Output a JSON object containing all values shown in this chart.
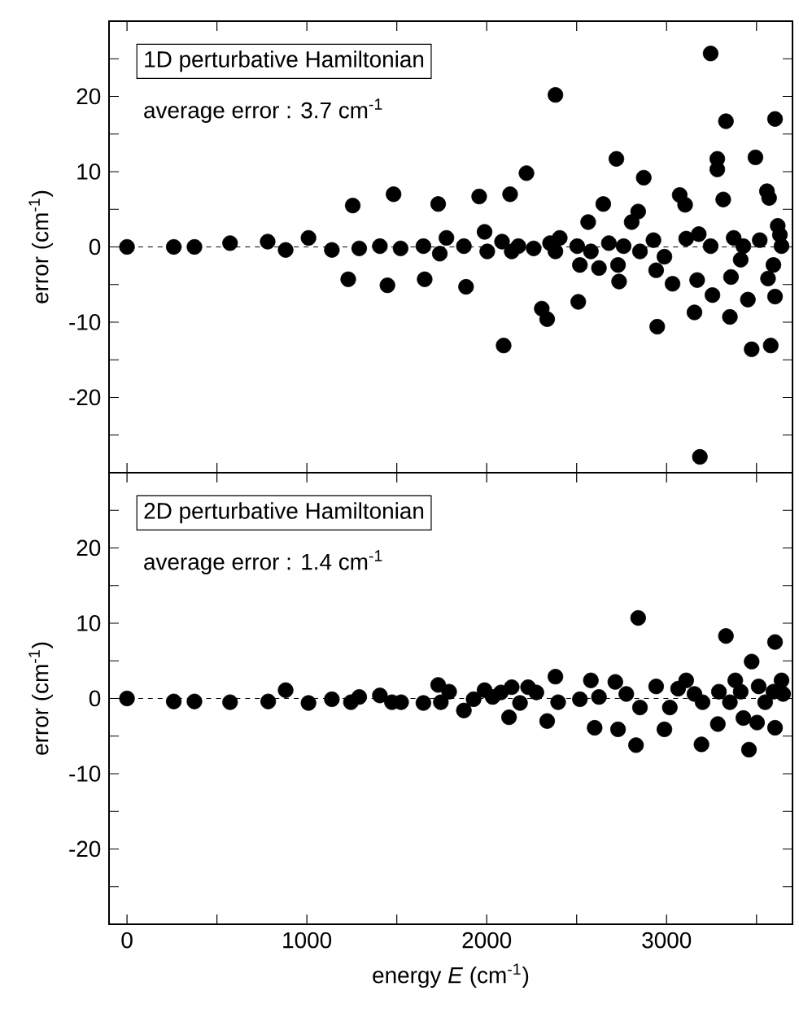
{
  "chart_data": [
    {
      "type": "scatter",
      "title": "1D perturbative Hamiltonian",
      "ylabel": "error  (cm$^{-1}$)",
      "annotations": [
        "average error : 3.7 cm$^{-1}$"
      ],
      "x": [
        0,
        260,
        375,
        573,
        782,
        882,
        1009,
        1139,
        1255,
        1230,
        1291,
        1406,
        1448,
        1482,
        1521,
        1648,
        1655,
        1730,
        1739,
        1776,
        1873,
        1885,
        1958,
        1988,
        2003,
        2085,
        2094,
        2130,
        2139,
        2176,
        2221,
        2261,
        2306,
        2336,
        2352,
        2382,
        2406,
        2382,
        2509,
        2503,
        2518,
        2564,
        2579,
        2624,
        2648,
        2679,
        2721,
        2730,
        2736,
        2761,
        2806,
        2842,
        2852,
        2873,
        2927,
        2942,
        2948,
        2988,
        3033,
        3073,
        3103,
        3109,
        3155,
        3170,
        3179,
        3185,
        3245,
        3245,
        3255,
        3282,
        3282,
        3315,
        3330,
        3352,
        3358,
        3373,
        3412,
        3427,
        3452,
        3473,
        3494,
        3518,
        3558,
        3570,
        3564,
        3579,
        3594,
        3603,
        3603,
        3618,
        3630,
        3639
      ],
      "values": [
        0,
        0,
        0,
        0.5,
        0.7,
        -0.4,
        1.2,
        -0.4,
        5.5,
        -4.3,
        -0.2,
        0.1,
        -5.1,
        7.0,
        -0.2,
        0.1,
        -4.3,
        5.7,
        -0.9,
        1.2,
        0.1,
        -5.3,
        6.7,
        2.0,
        -0.6,
        0.7,
        -13.1,
        7.0,
        -0.6,
        0.1,
        9.8,
        -0.2,
        -8.2,
        -9.6,
        0.5,
        20.2,
        1.2,
        -0.6,
        -7.3,
        0.1,
        -2.4,
        3.3,
        -0.6,
        -2.8,
        5.7,
        0.5,
        11.7,
        -2.4,
        -4.6,
        0.1,
        3.3,
        4.7,
        -0.6,
        9.2,
        0.9,
        -3.1,
        -10.6,
        -1.3,
        -4.9,
        6.9,
        5.6,
        1.1,
        -8.7,
        -4.4,
        1.7,
        -27.9,
        25.7,
        0.1,
        -6.4,
        11.7,
        10.3,
        6.3,
        16.7,
        -9.3,
        -4.0,
        1.2,
        -1.7,
        0.1,
        -7.0,
        -13.6,
        11.9,
        0.9,
        7.4,
        6.5,
        -4.2,
        -13.1,
        -2.4,
        -6.6,
        17.0,
        2.8,
        1.6,
        0.1
      ],
      "color": "#000000",
      "xlim": [
        -100,
        3700
      ],
      "ylim": [
        -30,
        30
      ],
      "xticks": [
        0,
        {
          "value": 500,
          "label": null
        },
        1000,
        {
          "value": 1500,
          "label": null
        },
        2000,
        {
          "value": 2500,
          "label": null
        },
        3000,
        {
          "value": 3500,
          "label": null
        }
      ],
      "yticks": [
        {
          "value": -25,
          "label": null
        },
        -20,
        {
          "value": -15,
          "label": null
        },
        -10,
        {
          "value": -5,
          "label": null
        },
        0,
        {
          "value": 5,
          "label": null
        },
        10,
        {
          "value": 15,
          "label": null
        },
        20,
        {
          "value": 25,
          "label": null
        }
      ],
      "tick_labels": "y",
      "ref_lines": [
        {
          "axis": "y",
          "value": 0,
          "line_style": "dashed",
          "color": "#000000"
        }
      ]
    },
    {
      "type": "scatter",
      "title": "2D perturbative Hamiltonian",
      "ylabel": "error  (cm$^{-1}$)",
      "xlabel": "energy *E*  (cm$^{-1}$)",
      "annotations": [
        "average error : 1.4 cm$^{-1}$"
      ],
      "x": [
        0,
        260,
        375,
        573,
        785,
        882,
        1009,
        1139,
        1245,
        1291,
        1406,
        1473,
        1524,
        1648,
        1730,
        1745,
        1791,
        1873,
        1927,
        1988,
        2033,
        2079,
        2124,
        2139,
        2185,
        2230,
        2276,
        2336,
        2382,
        2397,
        2518,
        2579,
        2600,
        2624,
        2715,
        2730,
        2776,
        2830,
        2842,
        2852,
        2942,
        2988,
        3018,
        3064,
        3109,
        3155,
        3194,
        3200,
        3285,
        3291,
        3330,
        3352,
        3382,
        3412,
        3427,
        3458,
        3473,
        3503,
        3512,
        3548,
        3594,
        3603,
        3603,
        3639,
        3648
      ],
      "values": [
        0,
        -0.4,
        -0.4,
        -0.5,
        -0.4,
        1.1,
        -0.6,
        -0.1,
        -0.5,
        0.2,
        0.4,
        -0.5,
        -0.5,
        -0.6,
        1.8,
        -0.5,
        0.9,
        -1.6,
        -0.1,
        1.1,
        0.2,
        0.8,
        -2.5,
        1.5,
        -0.6,
        1.5,
        0.8,
        -3.0,
        2.9,
        -0.5,
        -0.1,
        2.4,
        -3.9,
        0.2,
        2.2,
        -4.1,
        0.6,
        -6.2,
        10.7,
        -1.2,
        1.6,
        -4.1,
        -1.2,
        1.3,
        2.4,
        0.6,
        -6.1,
        -0.5,
        -3.4,
        0.9,
        8.3,
        -0.5,
        2.4,
        0.9,
        -2.6,
        -6.8,
        4.9,
        -3.2,
        1.6,
        -0.5,
        0.9,
        7.5,
        -3.9,
        2.4,
        0.6
      ],
      "color": "#000000",
      "xlim": [
        -100,
        3700
      ],
      "ylim": [
        -30,
        30
      ],
      "xticks": [
        0,
        {
          "value": 500,
          "label": null
        },
        1000,
        {
          "value": 1500,
          "label": null
        },
        2000,
        {
          "value": 2500,
          "label": null
        },
        3000,
        {
          "value": 3500,
          "label": null
        }
      ],
      "yticks": [
        {
          "value": -25,
          "label": null
        },
        -20,
        {
          "value": -15,
          "label": null
        },
        -10,
        {
          "value": -5,
          "label": null
        },
        0,
        {
          "value": 5,
          "label": null
        },
        10,
        {
          "value": 15,
          "label": null
        },
        20,
        {
          "value": 25,
          "label": null
        }
      ],
      "ref_lines": [
        {
          "axis": "y",
          "value": 0,
          "line_style": "dashed",
          "color": "#000000"
        }
      ]
    }
  ]
}
